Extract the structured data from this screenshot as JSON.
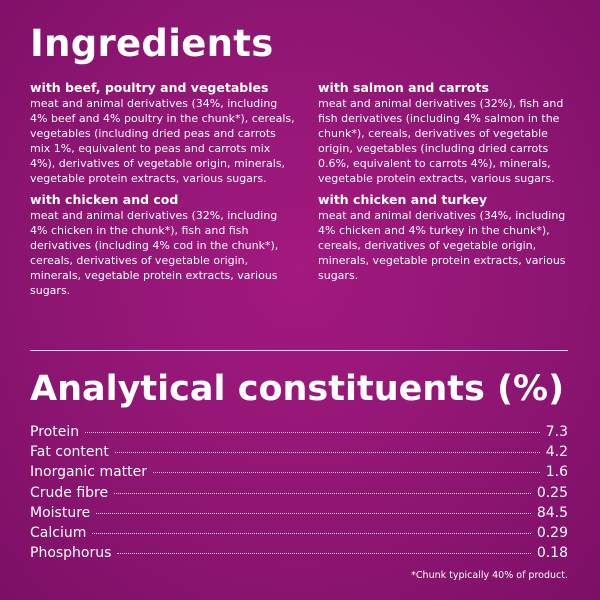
{
  "ingredients": {
    "title": "Ingredients",
    "left": [
      {
        "heading": "with beef, poultry and vegetables",
        "text": "meat and animal derivatives (34%, including 4% beef and 4% poultry in the chunk*), cereals, vegetables (including dried peas and carrots mix 1%, equivalent to peas and carrots mix 4%), derivatives of vegetable origin, minerals, vegetable protein extracts, various sugars."
      },
      {
        "heading": "with chicken and cod",
        "text": "meat and animal derivatives (32%, including 4% chicken in the chunk*), fish and fish derivatives (including 4% cod in the chunk*), cereals, derivatives of vegetable origin, minerals, vegetable protein extracts, various sugars."
      }
    ],
    "right": [
      {
        "heading": "with salmon and carrots",
        "text": "meat and animal derivatives (32%), fish and fish derivatives (including 4% salmon in the chunk*), cereals, derivatives of vegetable origin, vegetables (including dried carrots 0.6%, equivalent to carrots 4%), minerals, vegetable protein extracts, various sugars."
      },
      {
        "heading": "with chicken and turkey",
        "text": "meat and animal derivatives (34%, including 4% chicken and 4% turkey in the chunk*), cereals, derivatives of vegetable origin, minerals, vegetable protein extracts, various sugars."
      }
    ]
  },
  "analytical": {
    "title": "Analytical constituents (%)",
    "rows": [
      {
        "name": "Protein",
        "value": "7.3"
      },
      {
        "name": "Fat content",
        "value": "4.2"
      },
      {
        "name": "Inorganic matter",
        "value": "1.6"
      },
      {
        "name": "Crude fibre",
        "value": "0.25"
      },
      {
        "name": "Moisture",
        "value": "84.5"
      },
      {
        "name": "Calcium",
        "value": "0.29"
      },
      {
        "name": "Phosphorus",
        "value": "0.18"
      }
    ]
  },
  "footnote": "*Chunk typically 40% of product.",
  "colors": {
    "background": "#8f1673",
    "text": "#ffffff"
  }
}
